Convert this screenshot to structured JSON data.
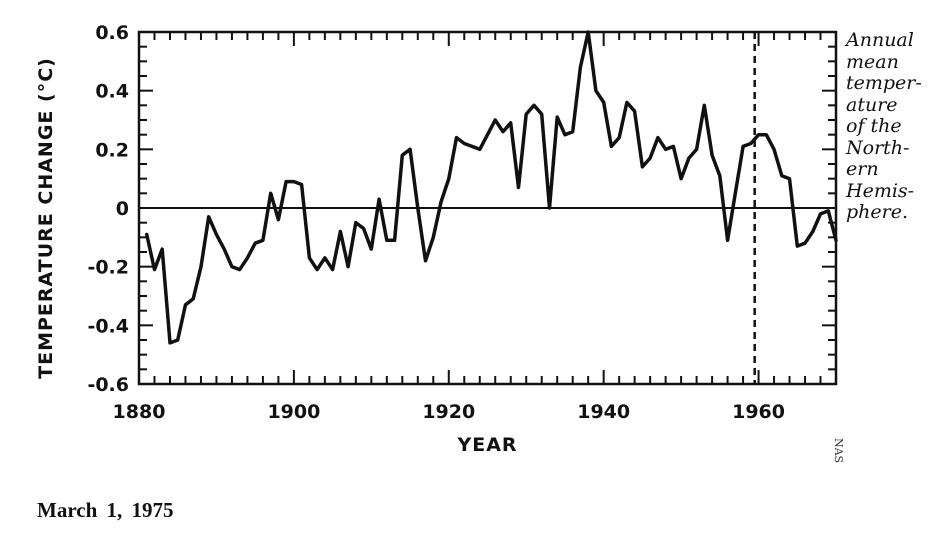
{
  "chart_data": {
    "type": "line",
    "xlabel": "YEAR",
    "ylabel": "TEMPERATURE CHANGE (°C)",
    "xlim": [
      1880,
      1970
    ],
    "ylim": [
      -0.6,
      0.6
    ],
    "x_ticks": [
      1880,
      1900,
      1920,
      1940,
      1960
    ],
    "y_ticks": [
      0.6,
      0.4,
      0.2,
      0,
      -0.2,
      -0.4,
      -0.6
    ],
    "y_tick_labels": [
      "0.6",
      "0.4",
      "0.2",
      "0",
      "-0.2",
      "-0.4",
      "-0.6"
    ],
    "x_tick_labels": [
      "1880",
      "1900",
      "1920",
      "1940",
      "1960"
    ],
    "zero_line": 0,
    "marker_year": 1959.5,
    "series": [
      {
        "x": [
          1881,
          1882,
          1883,
          1884,
          1885,
          1886,
          1887,
          1888,
          1889,
          1890,
          1891,
          1892,
          1893,
          1894,
          1895,
          1896,
          1897,
          1898,
          1899,
          1900,
          1901,
          1902,
          1903,
          1904,
          1905,
          1906,
          1907,
          1908,
          1909,
          1910,
          1911,
          1912,
          1913,
          1914,
          1915,
          1916,
          1917,
          1918,
          1919,
          1920,
          1921,
          1922,
          1923,
          1924,
          1925,
          1926,
          1927,
          1928,
          1929,
          1930,
          1931,
          1932,
          1933,
          1934,
          1935,
          1936,
          1937,
          1938,
          1939,
          1940,
          1941,
          1942,
          1943,
          1944,
          1945,
          1946,
          1947,
          1948,
          1949,
          1950,
          1951,
          1952,
          1953,
          1954,
          1955,
          1956,
          1957,
          1958,
          1959,
          1960,
          1961,
          1962,
          1963,
          1964,
          1965,
          1966,
          1967,
          1968,
          1969,
          1970
        ],
        "values": [
          -0.09,
          -0.21,
          -0.14,
          -0.46,
          -0.45,
          -0.33,
          -0.31,
          -0.2,
          -0.03,
          -0.09,
          -0.14,
          -0.2,
          -0.21,
          -0.17,
          -0.12,
          -0.11,
          0.05,
          -0.04,
          0.09,
          0.09,
          0.08,
          -0.17,
          -0.21,
          -0.17,
          -0.21,
          -0.08,
          -0.2,
          -0.05,
          -0.07,
          -0.14,
          0.03,
          -0.11,
          -0.11,
          0.18,
          0.2,
          0.0,
          -0.18,
          -0.1,
          0.02,
          0.1,
          0.24,
          0.22,
          0.21,
          0.2,
          0.25,
          0.3,
          0.26,
          0.29,
          0.07,
          0.32,
          0.35,
          0.32,
          0.0,
          0.31,
          0.25,
          0.26,
          0.48,
          0.6,
          0.4,
          0.36,
          0.21,
          0.24,
          0.36,
          0.33,
          0.14,
          0.17,
          0.24,
          0.2,
          0.21,
          0.1,
          0.17,
          0.2,
          0.35,
          0.18,
          0.11,
          -0.11,
          0.05,
          0.21,
          0.22,
          0.25,
          0.25,
          0.2,
          0.11,
          0.1,
          -0.13,
          -0.12,
          -0.08,
          -0.02,
          -0.01,
          -0.11
        ]
      }
    ]
  },
  "caption_lines": [
    "Annual",
    "mean",
    "temper-",
    "ature",
    "of the",
    "North-",
    "ern",
    "Hemis-",
    "phere."
  ],
  "credit": "NAS",
  "dateline": "March 1, 1975"
}
